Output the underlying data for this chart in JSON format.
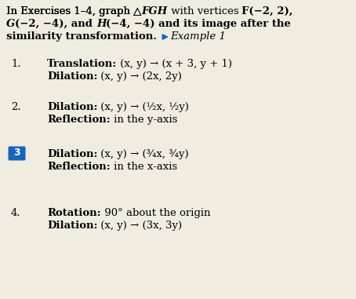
{
  "bg_color": "#f0ece0",
  "header_line1": "In Exercises 1–4, graph △",
  "header_line1b": "FGH",
  "header_line1c": " with vertices ",
  "header_line1d": "F(−2, 2),",
  "header_line2": "G(−2, −4), and H(−4, −4) and its image after the",
  "header_line3": "similarity transformation.",
  "example_text": "Example 1",
  "highlight_color": "#1565c0",
  "items": [
    {
      "number": "1.",
      "line1_bold": "Translation:",
      "line1_normal": " (x, y) → (x + 3, y + 1)",
      "line2_bold": "Dilation:",
      "line2_normal": " (x, y) → (2x, 2y)",
      "highlighted": false
    },
    {
      "number": "2.",
      "line1_bold": "Dilation:",
      "line1_normal": " (x, y) → (½x, ½y)",
      "line1_normal_fracs": true,
      "line2_bold": "Reflection:",
      "line2_normal": " in the y-axis",
      "highlighted": false
    },
    {
      "number": "3.",
      "line1_bold": "Dilation:",
      "line1_normal": " (x, y) → (¾x, ¾y)",
      "line1_normal_fracs": true,
      "line2_bold": "Reflection:",
      "line2_normal": " in the x-axis",
      "highlighted": true
    },
    {
      "number": "4.",
      "line1_bold": "Rotation:",
      "line1_normal": " 90° about the origin",
      "line2_bold": "Dilation:",
      "line2_normal": " (x, y) → (3x, 3y)",
      "highlighted": false
    }
  ]
}
